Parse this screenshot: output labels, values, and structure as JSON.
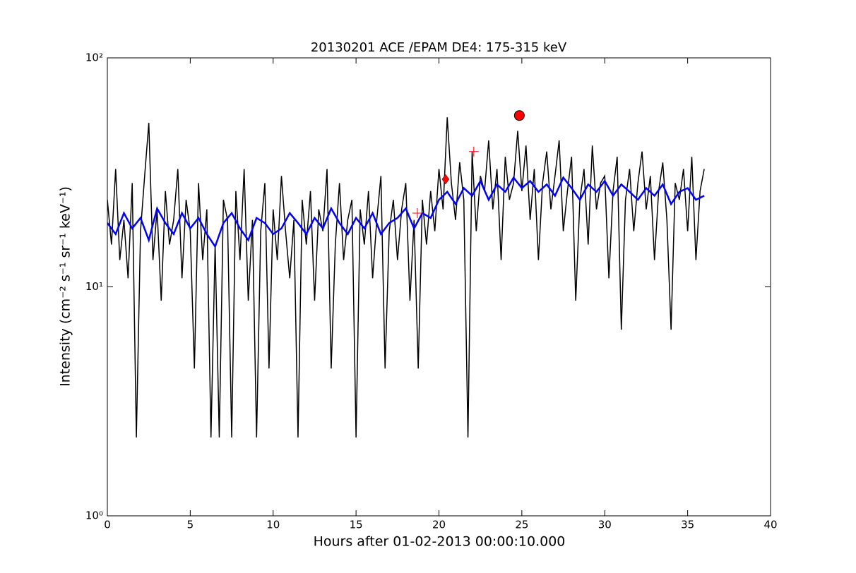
{
  "chart_data": {
    "type": "line",
    "title": "20130201 ACE /EPAM DE4: 175-315 keV",
    "xlabel": "Hours after 01-02-2013 00:00:10.000",
    "ylabel": "Intensity (cm⁻² s⁻¹ sr⁻¹ keV⁻¹)",
    "xlim": [
      0,
      40
    ],
    "xticks": [
      0,
      5,
      10,
      15,
      20,
      25,
      30,
      35,
      40
    ],
    "ylim": [
      1,
      100
    ],
    "yscale": "log",
    "yticks": [
      {
        "value": 1,
        "label": "10⁰"
      },
      {
        "value": 10,
        "label": "10¹"
      },
      {
        "value": 100,
        "label": "10²"
      }
    ],
    "series": [
      {
        "color": "#000000",
        "width": 1.5,
        "x": [
          0,
          0.25,
          0.5,
          0.75,
          1,
          1.25,
          1.5,
          1.75,
          2,
          2.25,
          2.5,
          2.75,
          3,
          3.25,
          3.5,
          3.75,
          4,
          4.25,
          4.5,
          4.75,
          5,
          5.25,
          5.5,
          5.75,
          6,
          6.25,
          6.5,
          6.75,
          7,
          7.25,
          7.5,
          7.75,
          8,
          8.25,
          8.5,
          8.75,
          9,
          9.25,
          9.5,
          9.75,
          10,
          10.25,
          10.5,
          10.75,
          11,
          11.25,
          11.5,
          11.75,
          12,
          12.25,
          12.5,
          12.75,
          13,
          13.25,
          13.5,
          13.75,
          14,
          14.25,
          14.5,
          14.75,
          15,
          15.25,
          15.5,
          15.75,
          16,
          16.25,
          16.5,
          16.75,
          17,
          17.25,
          17.5,
          17.75,
          18,
          18.25,
          18.5,
          18.75,
          19,
          19.25,
          19.5,
          19.75,
          20,
          20.25,
          20.5,
          20.75,
          21,
          21.25,
          21.5,
          21.75,
          22,
          22.25,
          22.5,
          22.75,
          23,
          23.25,
          23.5,
          23.75,
          24,
          24.25,
          24.5,
          24.75,
          25,
          25.25,
          25.5,
          25.75,
          26,
          26.25,
          26.5,
          26.75,
          27,
          27.25,
          27.5,
          27.75,
          28,
          28.25,
          28.5,
          28.75,
          29,
          29.25,
          29.5,
          29.75,
          30,
          30.25,
          30.5,
          30.75,
          31,
          31.25,
          31.5,
          31.75,
          32,
          32.25,
          32.5,
          32.75,
          33,
          33.25,
          33.5,
          33.75,
          34,
          34.25,
          34.5,
          34.75,
          35,
          35.25,
          35.5,
          35.75,
          36
        ],
        "values": [
          24,
          15.3,
          32.7,
          13.1,
          19.6,
          10.9,
          28.4,
          2.2,
          17.5,
          30.5,
          52,
          13.1,
          21.8,
          8.7,
          26.2,
          15.3,
          19.6,
          32.7,
          10.9,
          24,
          17.5,
          4.4,
          28.4,
          13.1,
          21.8,
          2.2,
          15.3,
          2.2,
          24,
          19.6,
          2.2,
          26.2,
          13.1,
          32.7,
          8.7,
          19.6,
          2.2,
          17.5,
          28.4,
          4.4,
          21.8,
          13.1,
          30.5,
          17.5,
          10.9,
          19.6,
          2.2,
          24,
          15.3,
          26.2,
          8.7,
          21.8,
          17.5,
          32.7,
          4.4,
          15.3,
          28.4,
          13.1,
          19.6,
          24,
          2.2,
          21.8,
          15.3,
          26.2,
          10.9,
          19.6,
          30.5,
          4.4,
          17.5,
          24,
          13.1,
          21.8,
          28.4,
          8.7,
          19.6,
          4.4,
          24,
          15.3,
          26.2,
          17.5,
          32.7,
          21.8,
          55,
          28.4,
          19.6,
          35,
          24,
          2.2,
          39,
          17.5,
          30.5,
          26.2,
          43.6,
          21.8,
          32.7,
          13.1,
          37,
          24,
          28.4,
          48,
          26.2,
          41.4,
          19.6,
          32.7,
          13.1,
          28.4,
          39,
          21.8,
          30.5,
          43.6,
          17.5,
          26.2,
          37,
          8.7,
          24,
          32.7,
          15.3,
          41.4,
          21.8,
          28.4,
          30.5,
          10.9,
          26.2,
          37,
          6.5,
          24,
          32.7,
          17.5,
          28.4,
          39,
          21.8,
          30.5,
          13.1,
          26.2,
          34.9,
          19.6,
          6.5,
          28.4,
          24,
          32.7,
          17.5,
          37,
          13.1,
          26.2,
          32.7
        ]
      },
      {
        "color": "#0000ff",
        "width": 2.5,
        "x": [
          0,
          0.5,
          1,
          1.5,
          2,
          2.5,
          3,
          3.5,
          4,
          4.5,
          5,
          5.5,
          6,
          6.5,
          7,
          7.5,
          8,
          8.5,
          9,
          9.5,
          10,
          10.5,
          11,
          11.5,
          12,
          12.5,
          13,
          13.5,
          14,
          14.5,
          15,
          15.5,
          16,
          16.5,
          17,
          17.5,
          18,
          18.5,
          19,
          19.5,
          20,
          20.5,
          21,
          21.5,
          22,
          22.5,
          23,
          23.5,
          24,
          24.5,
          25,
          25.5,
          26,
          26.5,
          27,
          27.5,
          28,
          28.5,
          29,
          29.5,
          30,
          30.5,
          31,
          31.5,
          32,
          32.5,
          33,
          33.5,
          34,
          34.5,
          35,
          35.5,
          36
        ],
        "values": [
          19,
          17,
          21,
          18,
          20,
          16,
          22,
          19,
          17,
          21,
          18,
          20,
          17,
          15,
          19,
          21,
          18,
          16,
          20,
          19,
          17,
          18,
          21,
          19,
          17,
          20,
          18,
          22,
          19,
          17,
          20,
          18,
          21,
          17,
          19,
          20,
          22,
          18,
          21,
          20,
          24,
          26,
          23,
          27,
          25,
          29,
          24,
          28,
          26,
          30,
          27,
          29,
          26,
          28,
          25,
          30,
          27,
          24,
          28,
          26,
          29,
          25,
          28,
          26,
          24,
          27,
          25,
          28,
          23,
          26,
          27,
          24,
          25
        ]
      }
    ],
    "markers": [
      {
        "marker": "plus",
        "color": "#ff0000",
        "x": [
          18.7,
          22.1
        ],
        "values": [
          21,
          39
        ]
      },
      {
        "marker": "diamond",
        "color": "#ff0000",
        "x": [
          20.4
        ],
        "values": [
          29.5
        ]
      },
      {
        "marker": "circle",
        "color": "#ff0000",
        "x": [
          24.85
        ],
        "values": [
          56
        ]
      }
    ]
  }
}
